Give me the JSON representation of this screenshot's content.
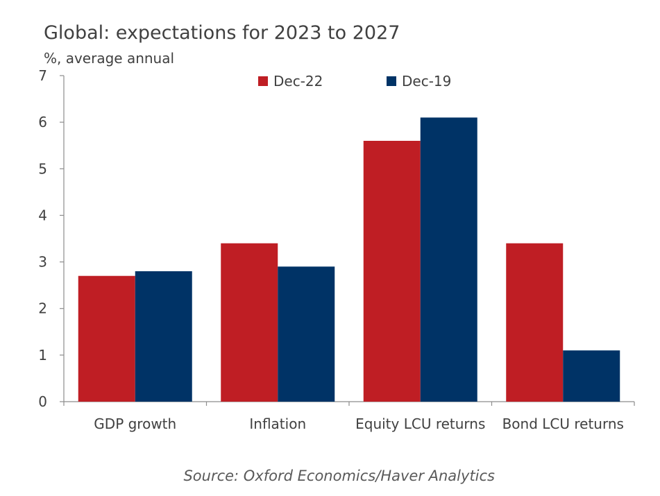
{
  "chart_data": {
    "type": "bar",
    "title": "Global: expectations for 2023 to 2027",
    "ylabel": "%, average annual",
    "xlabel": "",
    "ylim": [
      0,
      7
    ],
    "yticks": [
      0,
      1,
      2,
      3,
      4,
      5,
      6,
      7
    ],
    "categories": [
      "GDP growth",
      "Inflation",
      "Equity LCU returns",
      "Bond LCU returns"
    ],
    "series": [
      {
        "name": "Dec-22",
        "color": "#bf1e24",
        "values": [
          2.7,
          3.4,
          5.6,
          3.4
        ]
      },
      {
        "name": "Dec-19",
        "color": "#003366",
        "values": [
          2.8,
          2.9,
          6.1,
          1.1
        ]
      }
    ],
    "legend_position": "top-center",
    "grid": false,
    "source": "Source: Oxford Economics/Haver Analytics"
  }
}
